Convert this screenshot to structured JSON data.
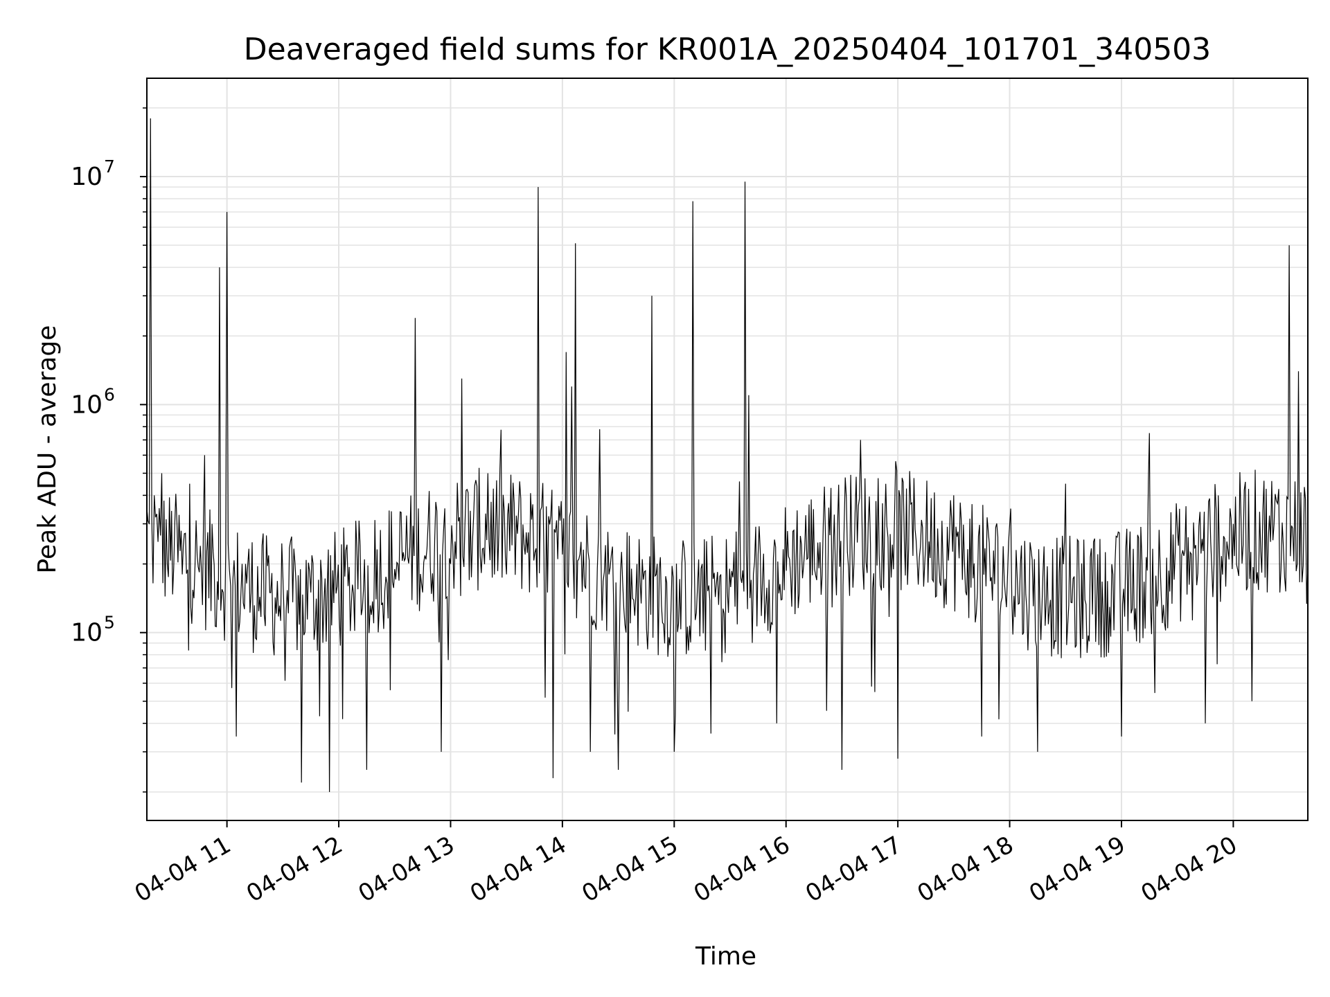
{
  "chart_data": {
    "type": "line",
    "title": "Deaveraged field sums for KR001A_20250404_101701_340503",
    "xlabel": "Time",
    "ylabel": "Peak ADU - average",
    "yscale": "log",
    "grid": true,
    "line_color": "#000000",
    "xlim": [
      "2025-04-04T10:17:01",
      "2025-04-04T20:40:00"
    ],
    "ylim": [
      15000,
      27000000
    ],
    "x_ticks": [
      {
        "value": "2025-04-04T11:00",
        "label": "04-04 11"
      },
      {
        "value": "2025-04-04T12:00",
        "label": "04-04 12"
      },
      {
        "value": "2025-04-04T13:00",
        "label": "04-04 13"
      },
      {
        "value": "2025-04-04T14:00",
        "label": "04-04 14"
      },
      {
        "value": "2025-04-04T15:00",
        "label": "04-04 15"
      },
      {
        "value": "2025-04-04T16:00",
        "label": "04-04 16"
      },
      {
        "value": "2025-04-04T17:00",
        "label": "04-04 17"
      },
      {
        "value": "2025-04-04T18:00",
        "label": "04-04 18"
      },
      {
        "value": "2025-04-04T19:00",
        "label": "04-04 19"
      },
      {
        "value": "2025-04-04T20:00",
        "label": "04-04 20"
      }
    ],
    "y_ticks": [
      {
        "value": 100000,
        "base": "10",
        "exp": "5"
      },
      {
        "value": 1000000,
        "base": "10",
        "exp": "6"
      },
      {
        "value": 10000000,
        "base": "10",
        "exp": "7"
      }
    ],
    "series": [
      {
        "points": [
          [
            "10:17",
            350000
          ],
          [
            "10:19",
            18000000
          ],
          [
            "10:21",
            400000
          ],
          [
            "10:23",
            250000
          ],
          [
            "10:25",
            500000
          ],
          [
            "10:28",
            200000
          ],
          [
            "10:32",
            300000
          ],
          [
            "10:36",
            180000
          ],
          [
            "10:40",
            450000
          ],
          [
            "10:44",
            220000
          ],
          [
            "10:48",
            600000
          ],
          [
            "10:52",
            300000
          ],
          [
            "10:56",
            4000000
          ],
          [
            "10:58",
            150000
          ],
          [
            "11:00",
            7000000
          ],
          [
            "11:02",
            160000
          ],
          [
            "11:05",
            35000
          ],
          [
            "11:10",
            200000
          ],
          [
            "11:20",
            120000
          ],
          [
            "11:30",
            180000
          ],
          [
            "11:40",
            22000
          ],
          [
            "11:45",
            150000
          ],
          [
            "11:55",
            20000
          ],
          [
            "12:05",
            160000
          ],
          [
            "12:15",
            25000
          ],
          [
            "12:20",
            140000
          ],
          [
            "12:30",
            190000
          ],
          [
            "12:41",
            2400000
          ],
          [
            "12:45",
            150000
          ],
          [
            "12:55",
            30000
          ],
          [
            "13:00",
            200000
          ],
          [
            "13:06",
            1300000
          ],
          [
            "13:10",
            170000
          ],
          [
            "13:20",
            500000
          ],
          [
            "13:30",
            180000
          ],
          [
            "13:40",
            220000
          ],
          [
            "13:47",
            9000000
          ],
          [
            "13:52",
            150000
          ],
          [
            "13:55",
            23000
          ],
          [
            "14:00",
            220000
          ],
          [
            "14:02",
            1700000
          ],
          [
            "14:05",
            1200000
          ],
          [
            "14:07",
            5100000
          ],
          [
            "14:10",
            250000
          ],
          [
            "14:15",
            30000
          ],
          [
            "14:20",
            780000
          ],
          [
            "14:25",
            180000
          ],
          [
            "14:30",
            25000
          ],
          [
            "14:40",
            200000
          ],
          [
            "14:48",
            3000000
          ],
          [
            "14:52",
            190000
          ],
          [
            "15:00",
            30000
          ],
          [
            "15:10",
            7800000
          ],
          [
            "15:15",
            200000
          ],
          [
            "15:25",
            180000
          ],
          [
            "15:35",
            460000
          ],
          [
            "15:38",
            9500000
          ],
          [
            "15:40",
            1100000
          ],
          [
            "15:45",
            220000
          ],
          [
            "15:55",
            40000
          ],
          [
            "16:10",
            230000
          ],
          [
            "16:20",
            300000
          ],
          [
            "16:30",
            25000
          ],
          [
            "16:40",
            700000
          ],
          [
            "16:50",
            220000
          ],
          [
            "17:00",
            28000
          ],
          [
            "17:15",
            250000
          ],
          [
            "17:30",
            400000
          ],
          [
            "17:45",
            35000
          ],
          [
            "18:00",
            300000
          ],
          [
            "18:15",
            30000
          ],
          [
            "18:30",
            450000
          ],
          [
            "18:45",
            250000
          ],
          [
            "19:00",
            35000
          ],
          [
            "19:15",
            750000
          ],
          [
            "19:30",
            280000
          ],
          [
            "19:45",
            40000
          ],
          [
            "20:00",
            300000
          ],
          [
            "20:10",
            50000
          ],
          [
            "20:20",
            250000
          ],
          [
            "20:25",
            150000
          ],
          [
            "20:30",
            5000000
          ],
          [
            "20:35",
            1400000
          ],
          [
            "20:40",
            200000
          ]
        ]
      }
    ]
  }
}
